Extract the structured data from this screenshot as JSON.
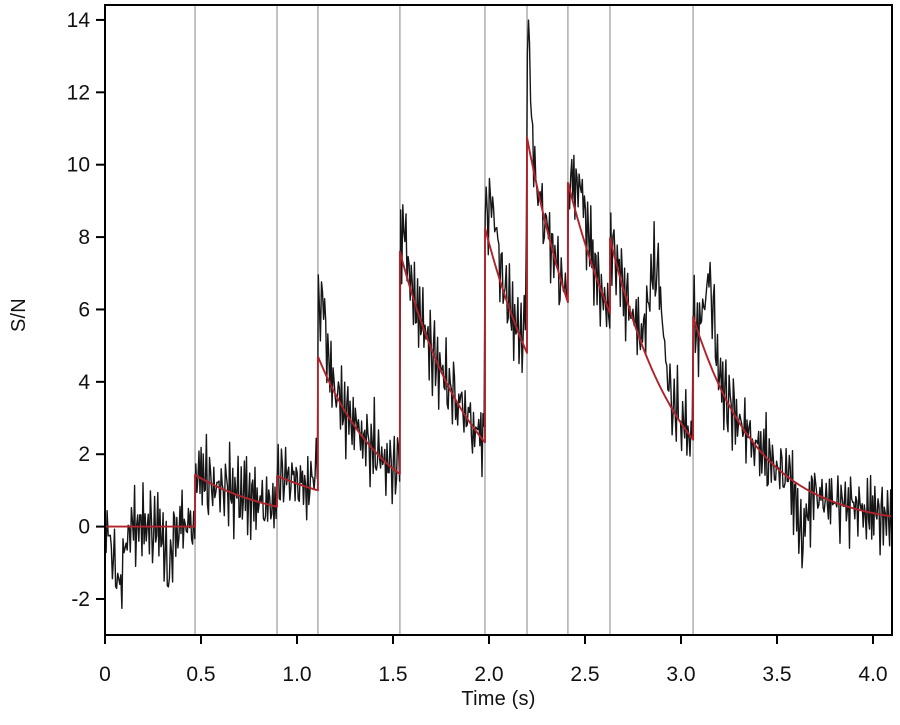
{
  "chart_data": {
    "type": "line",
    "title": "",
    "xlabel": "Time (s)",
    "ylabel": "S/N",
    "xlim": [
      0,
      4.099
    ],
    "ylim": [
      -3.0,
      14.41
    ],
    "grid": "vertical-event-lines-only",
    "legend": "none",
    "x_tick_values": [
      0,
      0.5,
      1.0,
      1.5,
      2.0,
      2.5,
      3.0,
      3.5,
      4.0
    ],
    "x_tick_labels": [
      "0",
      "0.5",
      "1.0",
      "1.5",
      "2.0",
      "2.5",
      "3.0",
      "3.5",
      "4.0"
    ],
    "y_tick_values": [
      -2,
      0,
      2,
      4,
      6,
      8,
      10,
      12,
      14
    ],
    "y_tick_labels": [
      "-2",
      "0",
      "2",
      "4",
      "6",
      "8",
      "10",
      "12",
      "14"
    ],
    "event_lines": {
      "color": "#a8a8a8",
      "times": [
        0.469,
        0.896,
        1.109,
        1.536,
        1.979,
        2.198,
        2.411,
        2.63,
        3.063
      ]
    },
    "series": [
      {
        "name": "measured S/N (noisy trace)",
        "color": "#161616"
      },
      {
        "name": "piecewise exponential-decay model fit",
        "color": "#b1232b"
      }
    ],
    "red_model": {
      "color": "#b1232b",
      "segments": [
        [
          0.0,
          0.0,
          0.469,
          0.0
        ],
        [
          0.469,
          1.43,
          0.896,
          0.55
        ],
        [
          0.896,
          1.4,
          1.109,
          1.0
        ],
        [
          1.109,
          4.7,
          1.536,
          1.45
        ],
        [
          1.536,
          7.6,
          1.979,
          2.33
        ],
        [
          1.979,
          8.25,
          2.198,
          4.8
        ],
        [
          2.198,
          10.75,
          2.411,
          6.2
        ],
        [
          2.411,
          9.5,
          2.63,
          5.9
        ],
        [
          2.63,
          7.97,
          3.063,
          2.4
        ],
        [
          3.063,
          5.8,
          4.099,
          0.28
        ]
      ]
    },
    "black_trace": {
      "color": "#161616",
      "dt": 0.0055,
      "noise_a_weight": 0.6,
      "noise_b_weight": 0.5,
      "noise_a": [
        0.12,
        -0.52,
        0.73,
        -0.91,
        0.31,
        1.12,
        -0.43,
        -1.21,
        0.54,
        0.92,
        -0.22,
        -0.81,
        1.38,
        0.18,
        -0.62,
        0.79,
        -1.48,
        0.42,
        0.61,
        -0.33,
        1.02,
        -0.72,
        -0.11,
        0.88,
        -1.12,
        0.21,
        0.69,
        -0.41,
        1.31,
        -0.93,
        -0.24,
        0.52,
        -1.33,
        0.81,
        0.09,
        -0.58,
        1.11,
        -0.31,
        0.44,
        -1.02,
        0.58,
        0.22,
        -0.69,
        1.47,
        -0.52,
        -1.38,
        0.33,
        0.91,
        -0.79,
        0.02,
        0.63,
        -1.08,
        0.38
      ],
      "noise_b": [
        0.42,
        -0.68,
        0.21,
        0.93,
        -0.34,
        -1.02,
        0.58,
        0.11,
        -0.49,
        1.18,
        -0.21,
        0.72,
        -0.88,
        0.31,
        0.82,
        -0.61,
        -0.12,
        1.01,
        -0.44,
        0.52,
        -1.19,
        0.22,
        0.63,
        -0.78,
        0.09,
        0.88,
        -0.52,
        -0.23,
        0.71,
        -1.08,
        0.41,
        0.02,
        0.79,
        -0.32,
        0.54,
        -0.92,
        1.09,
        -0.58,
        0.18,
        0.43,
        -0.71
      ],
      "bumps": [
        [
          2.205,
          3.2,
          0.012
        ],
        [
          1.13,
          1.9,
          0.022
        ],
        [
          2.87,
          3.1,
          0.035
        ],
        [
          3.15,
          2.3,
          0.025
        ],
        [
          2.02,
          1.4,
          0.025
        ],
        [
          2.48,
          1.1,
          0.03
        ],
        [
          1.56,
          0.9,
          0.018
        ],
        [
          0.07,
          -1.7,
          0.025
        ],
        [
          0.33,
          -1.2,
          0.02
        ],
        [
          3.63,
          -1.4,
          0.025
        ]
      ],
      "peak_value": 13.7,
      "min_value": -2.3
    },
    "frame_color": "#000000",
    "background_color": "#ffffff"
  }
}
